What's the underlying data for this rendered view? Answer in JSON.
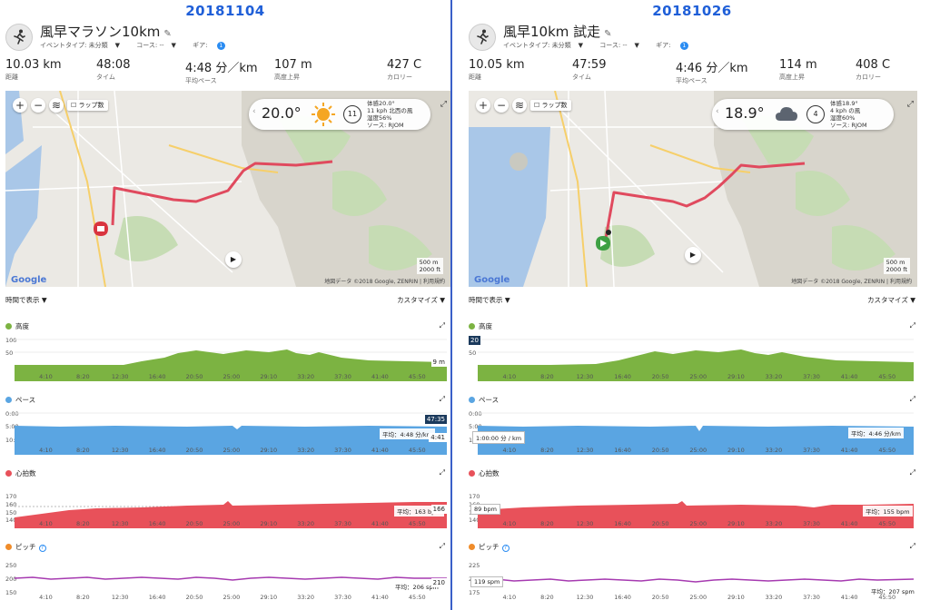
{
  "colors": {
    "elevation": "#7cb342",
    "pace": "#5aa5e2",
    "heart": "#e8515a",
    "cadence": "#a63ab0",
    "route": "#e04a5e",
    "accent": "#1f5fd8"
  },
  "tick_labels": [
    "4:10",
    "8:20",
    "12:30",
    "16:40",
    "20:50",
    "25:00",
    "29:10",
    "33:20",
    "37:30",
    "41:40",
    "45:50"
  ],
  "map_common": {
    "lap_label": "ラップ数",
    "google": "Google",
    "scale_m": "500 m",
    "scale_ft": "2000 ft",
    "copyright": "地図データ ©2018 Google, ZENRIN | 利用規約"
  },
  "labels": {
    "time_display": "時間で表示 ▼",
    "customize": "カスタマイズ ▼",
    "elevation": "高度",
    "pace": "ペース",
    "heart": "心拍数",
    "cadence": "ピッチ"
  },
  "left": {
    "date": "20181104",
    "title": "風早マラソン10km",
    "event_type": "イベントタイプ: 未分類",
    "course": "コース: --",
    "gear": "ギア:",
    "gear_count": "1",
    "stats": [
      {
        "value": "10.03 km",
        "label": "距離"
      },
      {
        "value": "48:08",
        "label": "タイム"
      },
      {
        "value": "4:48 分／km",
        "label": "平均ペース"
      },
      {
        "value": "107 m",
        "label": "高度上昇"
      },
      {
        "value": "427 C",
        "label": "カロリー"
      }
    ],
    "weather": {
      "temp": "20.0°",
      "wind": "11",
      "line1": "体感20.0°",
      "line2": "11 kph 北西の風",
      "line3": "湿度56%",
      "line4": "ソース: RJOM"
    },
    "elev_y": [
      "100",
      "50"
    ],
    "elev_side": "9 m",
    "pace_y": [
      "0:00",
      "5:00",
      "10:00"
    ],
    "pace_avg": "平均：4:48 分/km",
    "pace_side_top": "47:35",
    "pace_side": "4:41",
    "hr_y": [
      "170",
      "160",
      "150",
      "140"
    ],
    "hr_avg": "平均：163 bpm",
    "hr_side": "166",
    "cad_y": [
      "250",
      "200",
      "150"
    ],
    "cad_avg": "平均：206 spm",
    "cad_side": "210"
  },
  "right": {
    "date": "20181026",
    "title": "風早10km 試走",
    "event_type": "イベントタイプ: 未分類",
    "course": "コース: --",
    "gear": "ギア:",
    "gear_count": "1",
    "stats": [
      {
        "value": "10.05 km",
        "label": "距離"
      },
      {
        "value": "47:59",
        "label": "タイム"
      },
      {
        "value": "4:46 分／km",
        "label": "平均ペース"
      },
      {
        "value": "114 m",
        "label": "高度上昇"
      },
      {
        "value": "408 C",
        "label": "カロリー"
      }
    ],
    "weather": {
      "temp": "18.9°",
      "wind": "4",
      "line1": "体感18.9°",
      "line2": "4 kph の風",
      "line3": "湿度60%",
      "line4": "ソース: RJOM"
    },
    "elev_y": [
      "100",
      "50"
    ],
    "elev_side": "20",
    "pace_y": [
      "0:00",
      "5:00",
      "10:00"
    ],
    "pace_avg": "平均：4:46 分/km",
    "pace_tip": "1:00:00 分 / km",
    "hr_y": [
      "170",
      "160",
      "150",
      "140"
    ],
    "hr_avg": "平均：155 bpm",
    "hr_tip": "89 bpm",
    "cad_y": [
      "225",
      "200",
      "175"
    ],
    "cad_avg": "平均：207 spm",
    "cad_tip": "119 spm"
  }
}
